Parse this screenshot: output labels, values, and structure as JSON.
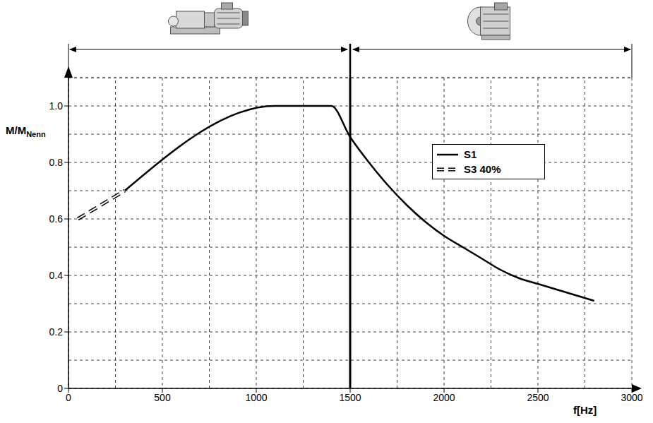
{
  "chart_data": {
    "type": "line",
    "xlabel": "f[Hz]",
    "ylabel": {
      "main": "M/M",
      "subscript": "Nenn"
    },
    "xlim": [
      0,
      3000
    ],
    "xticks": [
      0,
      500,
      1000,
      1500,
      2000,
      2500,
      3000
    ],
    "ylim": [
      0,
      1.1
    ],
    "yticks": [
      0,
      0.2,
      0.4,
      0.6,
      0.8,
      {
        "value": 1,
        "label": "1.0"
      }
    ],
    "grid": true,
    "legend": "upper right",
    "boundary_x": 1500,
    "series": [
      {
        "name": "S1",
        "color": "#000000",
        "line_style": "solid",
        "x": [
          300,
          1100,
          1400,
          1500,
          1600,
          1700,
          1800,
          1900,
          2000,
          2100,
          2200,
          2300,
          2400,
          2500,
          2600,
          2700,
          2800
        ],
        "values": [
          0.7,
          1.0,
          1.0,
          0.89,
          0.8,
          0.72,
          0.65,
          0.59,
          0.54,
          0.5,
          0.46,
          0.42,
          0.39,
          0.37,
          0.35,
          0.33,
          0.31
        ]
      },
      {
        "name": "S3 40%",
        "color": "#000000",
        "line_style": "double-dashed",
        "x": [
          50,
          300
        ],
        "values": [
          0.6,
          0.7
        ]
      }
    ]
  }
}
